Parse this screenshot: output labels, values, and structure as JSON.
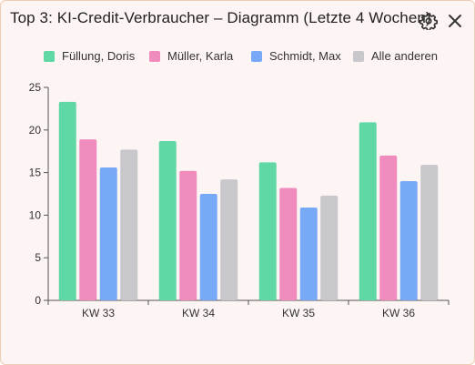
{
  "header": {
    "title": "Top 3: KI-Credit-Verbraucher – Diagramm (Letzte 4 Wochen)",
    "settings_icon": "gear-icon",
    "close_icon": "close-icon"
  },
  "chart_data": {
    "type": "bar",
    "categories": [
      "KW 33",
      "KW 34",
      "KW 35",
      "KW 36"
    ],
    "series": [
      {
        "name": "Füllung, Doris",
        "color": "#5fd8a6",
        "values": [
          23.3,
          18.7,
          16.2,
          20.9
        ]
      },
      {
        "name": "Müller, Karla",
        "color": "#ef8bbd",
        "values": [
          18.9,
          15.2,
          13.2,
          17.0
        ]
      },
      {
        "name": "Schmidt, Max",
        "color": "#78a9f7",
        "values": [
          15.6,
          12.5,
          10.9,
          14.0
        ]
      },
      {
        "name": "Alle anderen",
        "color": "#c8c7cb",
        "values": [
          17.7,
          14.2,
          12.3,
          15.9
        ]
      }
    ],
    "ylim": [
      0,
      25
    ],
    "yticks": [
      0,
      5,
      10,
      15,
      20,
      25
    ],
    "grid": false,
    "legend": "top",
    "xlabel": "",
    "ylabel": ""
  }
}
